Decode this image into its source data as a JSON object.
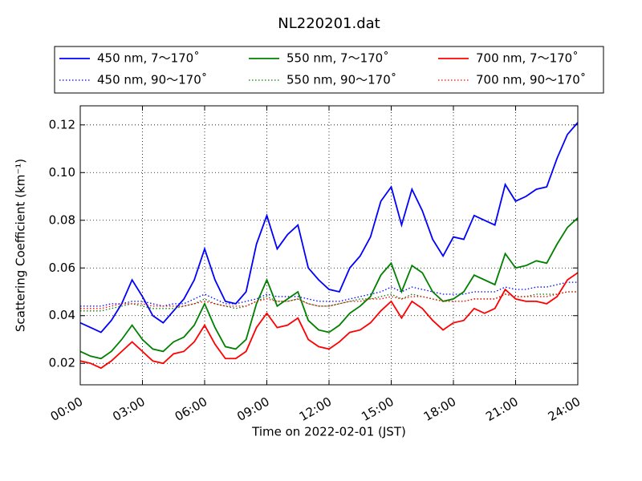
{
  "chart_data": {
    "type": "line",
    "title": "NL220201.dat",
    "x_label": "Time on 2022-02-01 (JST)",
    "y_label": "Scattering Coefficient (km⁻¹)",
    "x": [
      0,
      0.5,
      1,
      1.5,
      2,
      2.5,
      3,
      3.5,
      4,
      4.5,
      5,
      5.5,
      6,
      6.5,
      7,
      7.5,
      8,
      8.5,
      9,
      9.5,
      10,
      10.5,
      11,
      11.5,
      12,
      12.5,
      13,
      13.5,
      14,
      14.5,
      15,
      15.5,
      16,
      16.5,
      17,
      17.5,
      18,
      18.5,
      19,
      19.5,
      20,
      20.5,
      21,
      21.5,
      22,
      22.5,
      23,
      23.5,
      24
    ],
    "series": [
      {
        "name": "450 nm, 7～170˚",
        "color": "#0000ff",
        "style": "solid",
        "values": [
          0.037,
          0.035,
          0.033,
          0.038,
          0.045,
          0.055,
          0.048,
          0.04,
          0.037,
          0.042,
          0.047,
          0.055,
          0.068,
          0.055,
          0.046,
          0.045,
          0.05,
          0.07,
          0.082,
          0.068,
          0.074,
          0.078,
          0.06,
          0.055,
          0.051,
          0.05,
          0.06,
          0.065,
          0.073,
          0.088,
          0.094,
          0.078,
          0.093,
          0.084,
          0.072,
          0.065,
          0.073,
          0.072,
          0.082,
          0.08,
          0.078,
          0.095,
          0.088,
          0.09,
          0.093,
          0.094,
          0.106,
          0.116,
          0.121
        ]
      },
      {
        "name": "450 nm, 90～170˚",
        "color": "#0000ff",
        "style": "dotted",
        "values": [
          0.044,
          0.044,
          0.044,
          0.045,
          0.045,
          0.046,
          0.046,
          0.045,
          0.044,
          0.045,
          0.045,
          0.047,
          0.049,
          0.047,
          0.045,
          0.045,
          0.046,
          0.047,
          0.049,
          0.048,
          0.048,
          0.048,
          0.047,
          0.046,
          0.046,
          0.046,
          0.047,
          0.048,
          0.049,
          0.05,
          0.052,
          0.05,
          0.052,
          0.051,
          0.05,
          0.049,
          0.049,
          0.049,
          0.05,
          0.05,
          0.05,
          0.052,
          0.051,
          0.051,
          0.052,
          0.052,
          0.053,
          0.054,
          0.054
        ]
      },
      {
        "name": "550 nm, 7～170˚",
        "color": "#008000",
        "style": "solid",
        "values": [
          0.025,
          0.023,
          0.022,
          0.025,
          0.03,
          0.036,
          0.03,
          0.026,
          0.025,
          0.029,
          0.031,
          0.036,
          0.045,
          0.035,
          0.027,
          0.026,
          0.03,
          0.045,
          0.055,
          0.044,
          0.047,
          0.05,
          0.038,
          0.034,
          0.033,
          0.036,
          0.041,
          0.044,
          0.048,
          0.057,
          0.062,
          0.05,
          0.061,
          0.058,
          0.05,
          0.046,
          0.047,
          0.05,
          0.057,
          0.055,
          0.053,
          0.066,
          0.06,
          0.061,
          0.063,
          0.062,
          0.07,
          0.077,
          0.081
        ]
      },
      {
        "name": "550 nm, 90～170˚",
        "color": "#008000",
        "style": "dotted",
        "values": [
          0.042,
          0.042,
          0.042,
          0.043,
          0.044,
          0.045,
          0.044,
          0.043,
          0.043,
          0.043,
          0.044,
          0.045,
          0.047,
          0.045,
          0.044,
          0.043,
          0.044,
          0.046,
          0.048,
          0.046,
          0.046,
          0.047,
          0.045,
          0.044,
          0.044,
          0.045,
          0.046,
          0.047,
          0.047,
          0.048,
          0.049,
          0.047,
          0.049,
          0.048,
          0.047,
          0.046,
          0.046,
          0.046,
          0.047,
          0.047,
          0.047,
          0.049,
          0.048,
          0.048,
          0.049,
          0.049,
          0.049,
          0.05,
          0.05
        ]
      },
      {
        "name": "700 nm, 7～170˚",
        "color": "#ff0000",
        "style": "solid",
        "values": [
          0.021,
          0.02,
          0.018,
          0.021,
          0.025,
          0.029,
          0.025,
          0.021,
          0.02,
          0.024,
          0.025,
          0.029,
          0.036,
          0.028,
          0.022,
          0.022,
          0.025,
          0.035,
          0.041,
          0.035,
          0.036,
          0.039,
          0.03,
          0.027,
          0.026,
          0.029,
          0.033,
          0.034,
          0.037,
          0.042,
          0.046,
          0.039,
          0.046,
          0.043,
          0.038,
          0.034,
          0.037,
          0.038,
          0.043,
          0.041,
          0.043,
          0.051,
          0.047,
          0.046,
          0.046,
          0.045,
          0.048,
          0.055,
          0.058
        ]
      },
      {
        "name": "700 nm, 90～170˚",
        "color": "#ff0000",
        "style": "dotted",
        "values": [
          0.043,
          0.043,
          0.043,
          0.044,
          0.045,
          0.045,
          0.045,
          0.044,
          0.044,
          0.044,
          0.044,
          0.045,
          0.046,
          0.045,
          0.044,
          0.044,
          0.044,
          0.046,
          0.047,
          0.046,
          0.046,
          0.047,
          0.045,
          0.044,
          0.044,
          0.045,
          0.046,
          0.046,
          0.047,
          0.047,
          0.048,
          0.047,
          0.048,
          0.048,
          0.047,
          0.046,
          0.046,
          0.046,
          0.047,
          0.047,
          0.047,
          0.049,
          0.048,
          0.048,
          0.048,
          0.048,
          0.049,
          0.05,
          0.05
        ]
      }
    ],
    "xlim": [
      0,
      24
    ],
    "xticks": [
      {
        "value": 0,
        "label": "00:00"
      },
      {
        "value": 3,
        "label": "03:00"
      },
      {
        "value": 6,
        "label": "06:00"
      },
      {
        "value": 9,
        "label": "09:00"
      },
      {
        "value": 12,
        "label": "12:00"
      },
      {
        "value": 15,
        "label": "15:00"
      },
      {
        "value": 18,
        "label": "18:00"
      },
      {
        "value": 21,
        "label": "21:00"
      },
      {
        "value": 24,
        "label": "24:00"
      }
    ],
    "ylim": [
      0.011,
      0.128
    ],
    "yticks": [
      0.02,
      0.04,
      0.06,
      0.08,
      {
        "value": 0.1,
        "label": "0.10"
      },
      0.12
    ],
    "grid": true,
    "legend_position": "top"
  }
}
